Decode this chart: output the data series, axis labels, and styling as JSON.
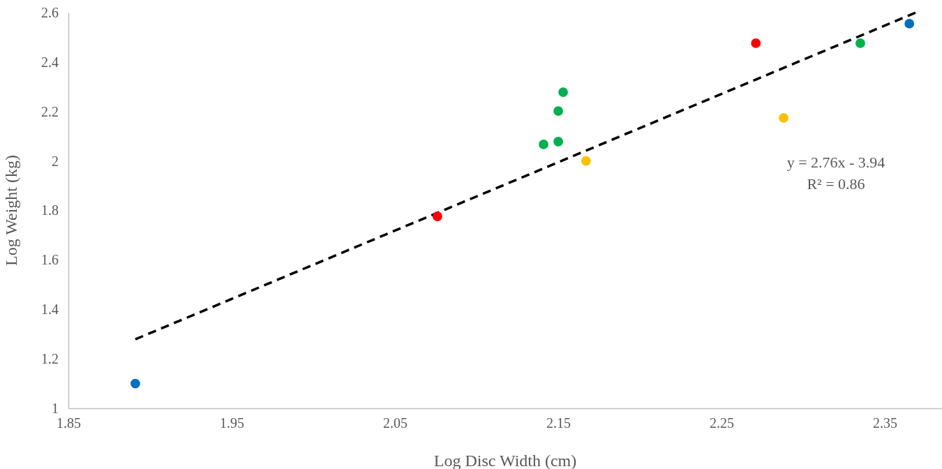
{
  "chart_data": {
    "type": "scatter",
    "xlabel": "Log Disc Width (cm)",
    "ylabel": "Log Weight (kg)",
    "xlim": [
      1.85,
      2.385
    ],
    "xticks": [
      1.85,
      1.95,
      2.05,
      2.15,
      2.25,
      2.35
    ],
    "ylim": [
      1,
      2.6
    ],
    "yticks": [
      1,
      1.2,
      1.4,
      1.6,
      1.8,
      2,
      2.2,
      2.4,
      2.6
    ],
    "grid": false,
    "marker": "circle",
    "series": [
      {
        "color": "#0070c0",
        "x": [
          1.891,
          2.365
        ],
        "values": [
          1.1,
          2.555
        ]
      },
      {
        "color": "#ff0000",
        "x": [
          2.076,
          2.271
        ],
        "values": [
          1.776,
          2.476
        ]
      },
      {
        "color": "#00b050",
        "x": [
          2.141,
          2.15,
          2.15,
          2.153,
          2.335
        ],
        "values": [
          2.067,
          2.078,
          2.202,
          2.278,
          2.476
        ]
      },
      {
        "color": "#ffc000",
        "x": [
          2.167,
          2.288
        ],
        "values": [
          2.0,
          2.174
        ]
      },
      {
        "type": "line",
        "color": "#000000",
        "line_style": "dashed",
        "marker": "none",
        "x": [
          1.891,
          2.369
        ],
        "values": [
          1.279,
          2.6
        ]
      }
    ],
    "annotations": [
      "y = 2.76x - 3.94",
      "R² = 0.86"
    ]
  }
}
